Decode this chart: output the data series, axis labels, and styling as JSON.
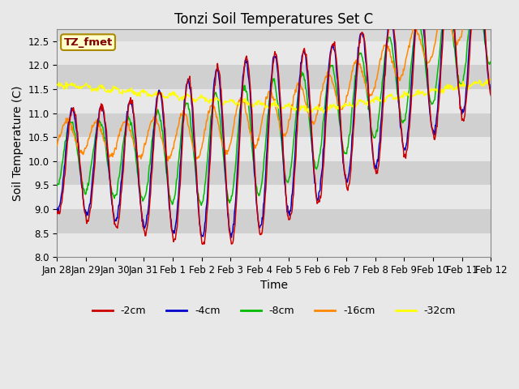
{
  "title": "Tonzi Soil Temperatures Set C",
  "xlabel": "Time",
  "ylabel": "Soil Temperature (C)",
  "ylim": [
    8.0,
    12.75
  ],
  "yticks": [
    8.0,
    8.5,
    9.0,
    9.5,
    10.0,
    10.5,
    11.0,
    11.5,
    12.0,
    12.5
  ],
  "xtick_labels": [
    "Jan 28",
    "Jan 29",
    "Jan 30",
    "Jan 31",
    "Feb 1",
    "Feb 2",
    "Feb 3",
    "Feb 4",
    "Feb 5",
    "Feb 6",
    "Feb 7",
    "Feb 8",
    "Feb 9",
    "Feb 10",
    "Feb 11",
    "Feb 12"
  ],
  "colors": {
    "-2cm": "#cc0000",
    "-4cm": "#0000cc",
    "-8cm": "#00bb00",
    "-16cm": "#ff8800",
    "-32cm": "#ffff00"
  },
  "annotation_text": "TZ_fmet",
  "fig_bg_color": "#e8e8e8",
  "plot_bg_color": "#d8d8d8",
  "band_light_color": "#e8e8e8",
  "band_dark_color": "#d0d0d0",
  "title_fontsize": 12,
  "axis_label_fontsize": 10,
  "tick_fontsize": 8.5,
  "legend_fontsize": 9
}
